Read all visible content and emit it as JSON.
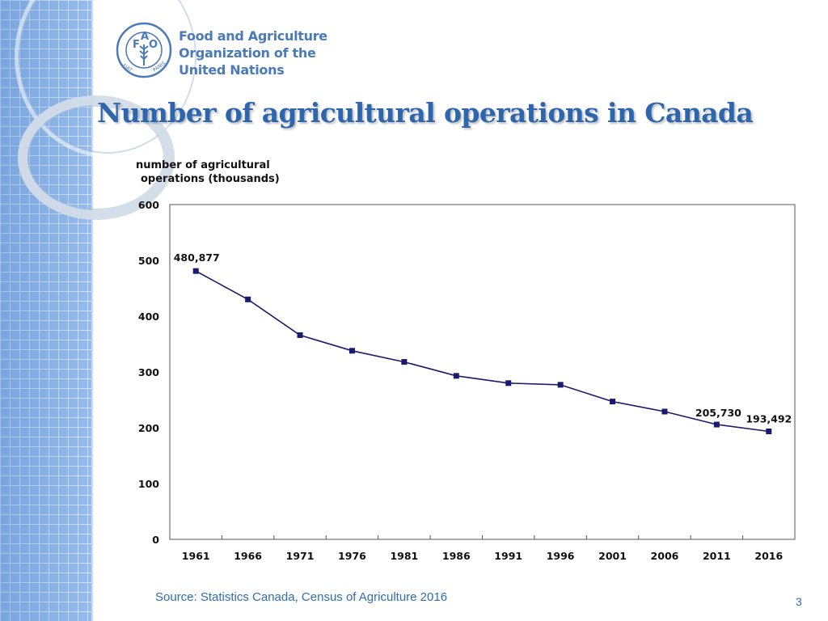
{
  "org": {
    "line1": "Food and Agriculture",
    "line2": "Organization of the",
    "line3": "United Nations",
    "logo_letters": [
      "F",
      "A",
      "O"
    ],
    "logo_ring_text": "FIAT PANIS"
  },
  "slide": {
    "title": "Number of agricultural operations in Canada",
    "source": "Source: Statistics Canada, Census of Agriculture 2016",
    "page_number": "3"
  },
  "colors": {
    "title": "#2e66ad",
    "line": "#1a1a6e",
    "band": "#8fb8ea"
  },
  "chart_data": {
    "type": "line",
    "title": "",
    "ylabel_lines": [
      "number of agricultural",
      "operations (thousands)"
    ],
    "xlabel": "",
    "ylim": [
      0,
      600
    ],
    "yticks": [
      0,
      100,
      200,
      300,
      400,
      500,
      600
    ],
    "grid": false,
    "categories": [
      "1961",
      "1966",
      "1971",
      "1976",
      "1981",
      "1986",
      "1991",
      "1996",
      "2001",
      "2006",
      "2011",
      "2016"
    ],
    "series": [
      {
        "values": [
          480.877,
          430,
          366,
          338,
          318,
          293,
          280,
          277,
          247,
          229,
          205.73,
          193.492
        ]
      }
    ],
    "annotations": [
      {
        "index": 0,
        "text": "480,877"
      },
      {
        "index": 10,
        "text": "205,730"
      },
      {
        "index": 11,
        "text": "193,492"
      }
    ]
  }
}
